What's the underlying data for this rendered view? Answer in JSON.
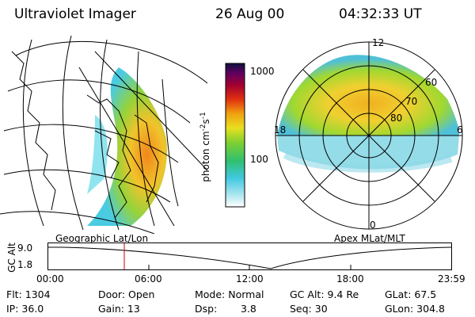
{
  "header": {
    "instrument": "Ultraviolet Imager",
    "date": "26 Aug 00",
    "time": "04:32:33 UT"
  },
  "panels": {
    "geo_label": "Geographic Lat/Lon",
    "apex_label": "Apex MLat/MLT"
  },
  "colorbar": {
    "label": "photon cm",
    "exp1": "-2",
    "s": "s",
    "exp2": "-1",
    "tick_high": "1000",
    "tick_low": "100"
  },
  "polar": {
    "mlt_12": "12",
    "mlt_18": "18",
    "mlt_6": "6",
    "mlt_0": "0",
    "mlat_60": "60",
    "mlat_70": "70",
    "mlat_80": "80"
  },
  "timeline": {
    "axis_label": "GC Alt",
    "y_high": "9.0",
    "y_low": "1.8",
    "ticks": [
      "00:00",
      "06:00",
      "12:00",
      "18:00",
      "23:59"
    ]
  },
  "info": {
    "flt": "Flt: 1304",
    "ip": "IP: 36.0",
    "door": "Door: Open",
    "gain": "Gain: 13",
    "mode": "Mode: Normal",
    "dsp_label": "Dsp:",
    "dsp_value": "3.8",
    "gc_alt": "GC Alt: 9.4 Re",
    "seq": "Seq: 30",
    "glat": "GLat:  67.5",
    "glon": "GLon: 304.8"
  },
  "colors": {
    "aurora_low": "#40c8e0",
    "aurora_mid": "#60d040",
    "aurora_high": "#f0c020",
    "aurora_peak": "#f08010",
    "marker": "#cc0000"
  }
}
